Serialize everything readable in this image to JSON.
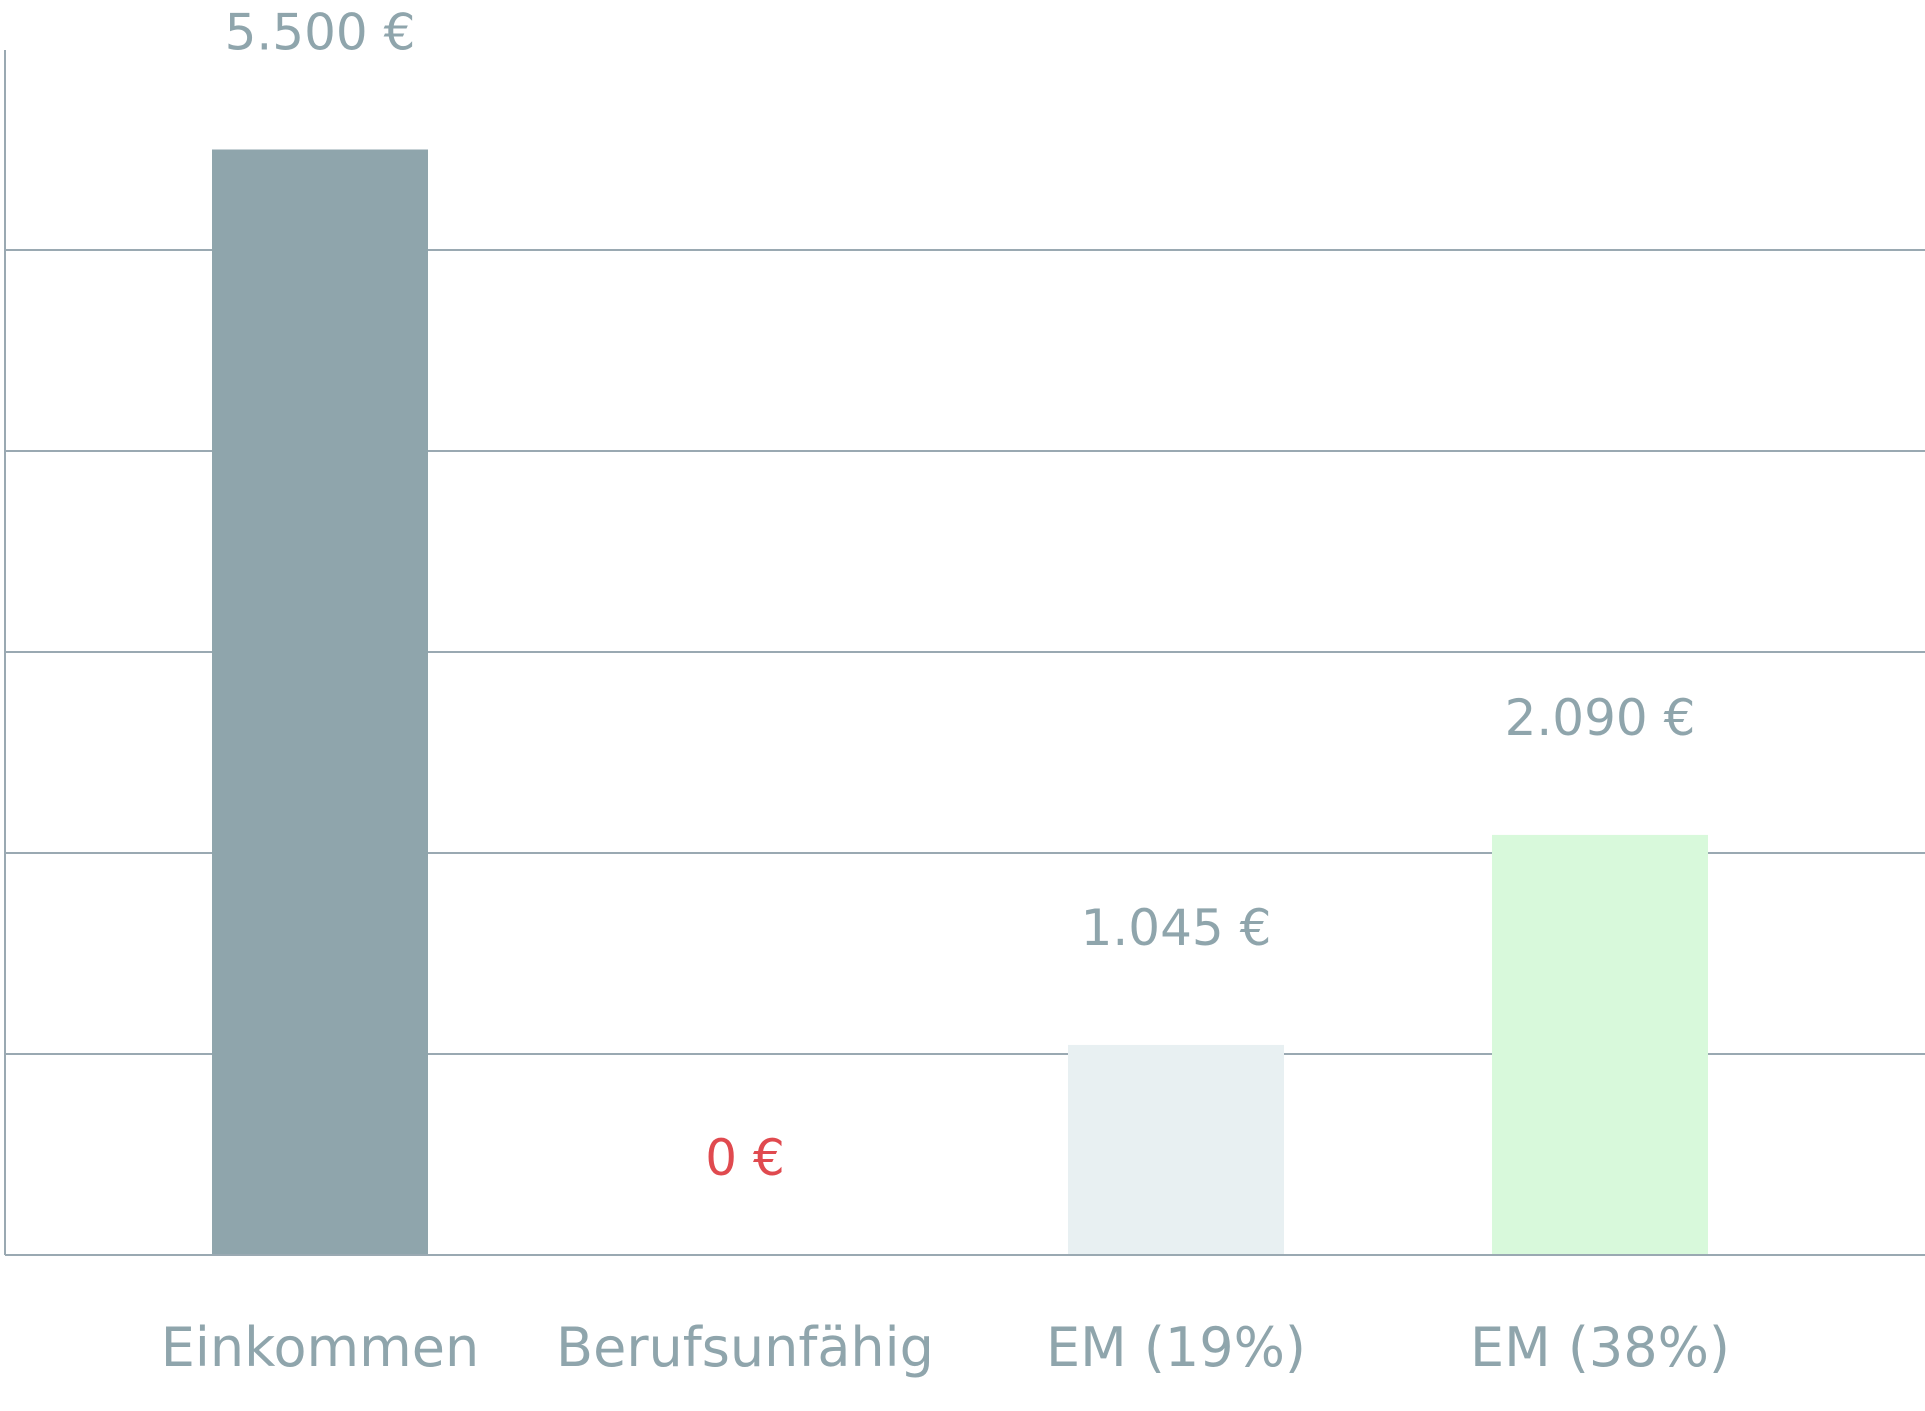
{
  "chart_data": {
    "type": "bar",
    "title": "",
    "xlabel": "",
    "ylabel": "",
    "categories": [
      "Einkommen",
      "Berufsunfähig",
      "EM (19%)",
      "EM (38%)"
    ],
    "values": [
      5500,
      0,
      1045,
      2090
    ],
    "value_labels": [
      "5.500 €",
      "0 €",
      "1.045 €",
      "2.090 €"
    ],
    "bar_colors": [
      "#8fa5ac",
      "#8fa5ac",
      "#e8f0f2",
      "#d8f9db"
    ],
    "label_colors": [
      "#8fa5ac",
      "#e04a4f",
      "#8fa5ac",
      "#8fa5ac"
    ],
    "ylim": [
      0,
      6000
    ],
    "gridlines": [
      1000,
      2000,
      3000,
      4000,
      5000
    ],
    "grid": true,
    "legend": "none"
  }
}
